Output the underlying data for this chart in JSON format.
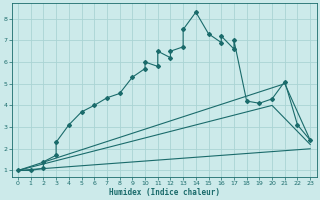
{
  "xlabel": "Humidex (Indice chaleur)",
  "bg_color": "#cceaea",
  "grid_color": "#aad4d4",
  "line_color": "#1a6b6b",
  "xlim": [
    -0.5,
    23.5
  ],
  "ylim": [
    0.7,
    8.7
  ],
  "x_ticks": [
    0,
    1,
    2,
    3,
    4,
    5,
    6,
    7,
    8,
    9,
    10,
    11,
    12,
    13,
    14,
    15,
    16,
    17,
    18,
    19,
    20,
    21,
    22,
    23
  ],
  "y_ticks": [
    1,
    2,
    3,
    4,
    5,
    6,
    7,
    8
  ],
  "curve_with_markers": {
    "x": [
      0,
      1,
      2,
      2,
      3,
      3,
      4,
      5,
      6,
      7,
      8,
      9,
      10,
      10,
      11,
      11,
      12,
      12,
      13,
      13,
      14,
      15,
      16,
      16,
      17,
      17,
      18,
      19,
      20,
      21,
      22,
      23
    ],
    "y": [
      1.0,
      1.0,
      1.1,
      1.4,
      1.7,
      2.3,
      3.1,
      3.7,
      4.0,
      4.35,
      4.55,
      5.3,
      5.7,
      6.0,
      5.8,
      6.5,
      6.2,
      6.5,
      6.7,
      7.5,
      8.3,
      7.3,
      6.9,
      7.2,
      6.6,
      7.0,
      4.2,
      4.1,
      4.3,
      5.1,
      3.1,
      2.4
    ]
  },
  "line1": {
    "x": [
      0,
      21,
      23
    ],
    "y": [
      1.0,
      5.0,
      2.4
    ]
  },
  "line2": {
    "x": [
      0,
      20,
      23
    ],
    "y": [
      1.0,
      4.0,
      2.2
    ]
  },
  "line3": {
    "x": [
      0,
      23
    ],
    "y": [
      1.0,
      2.0
    ]
  }
}
